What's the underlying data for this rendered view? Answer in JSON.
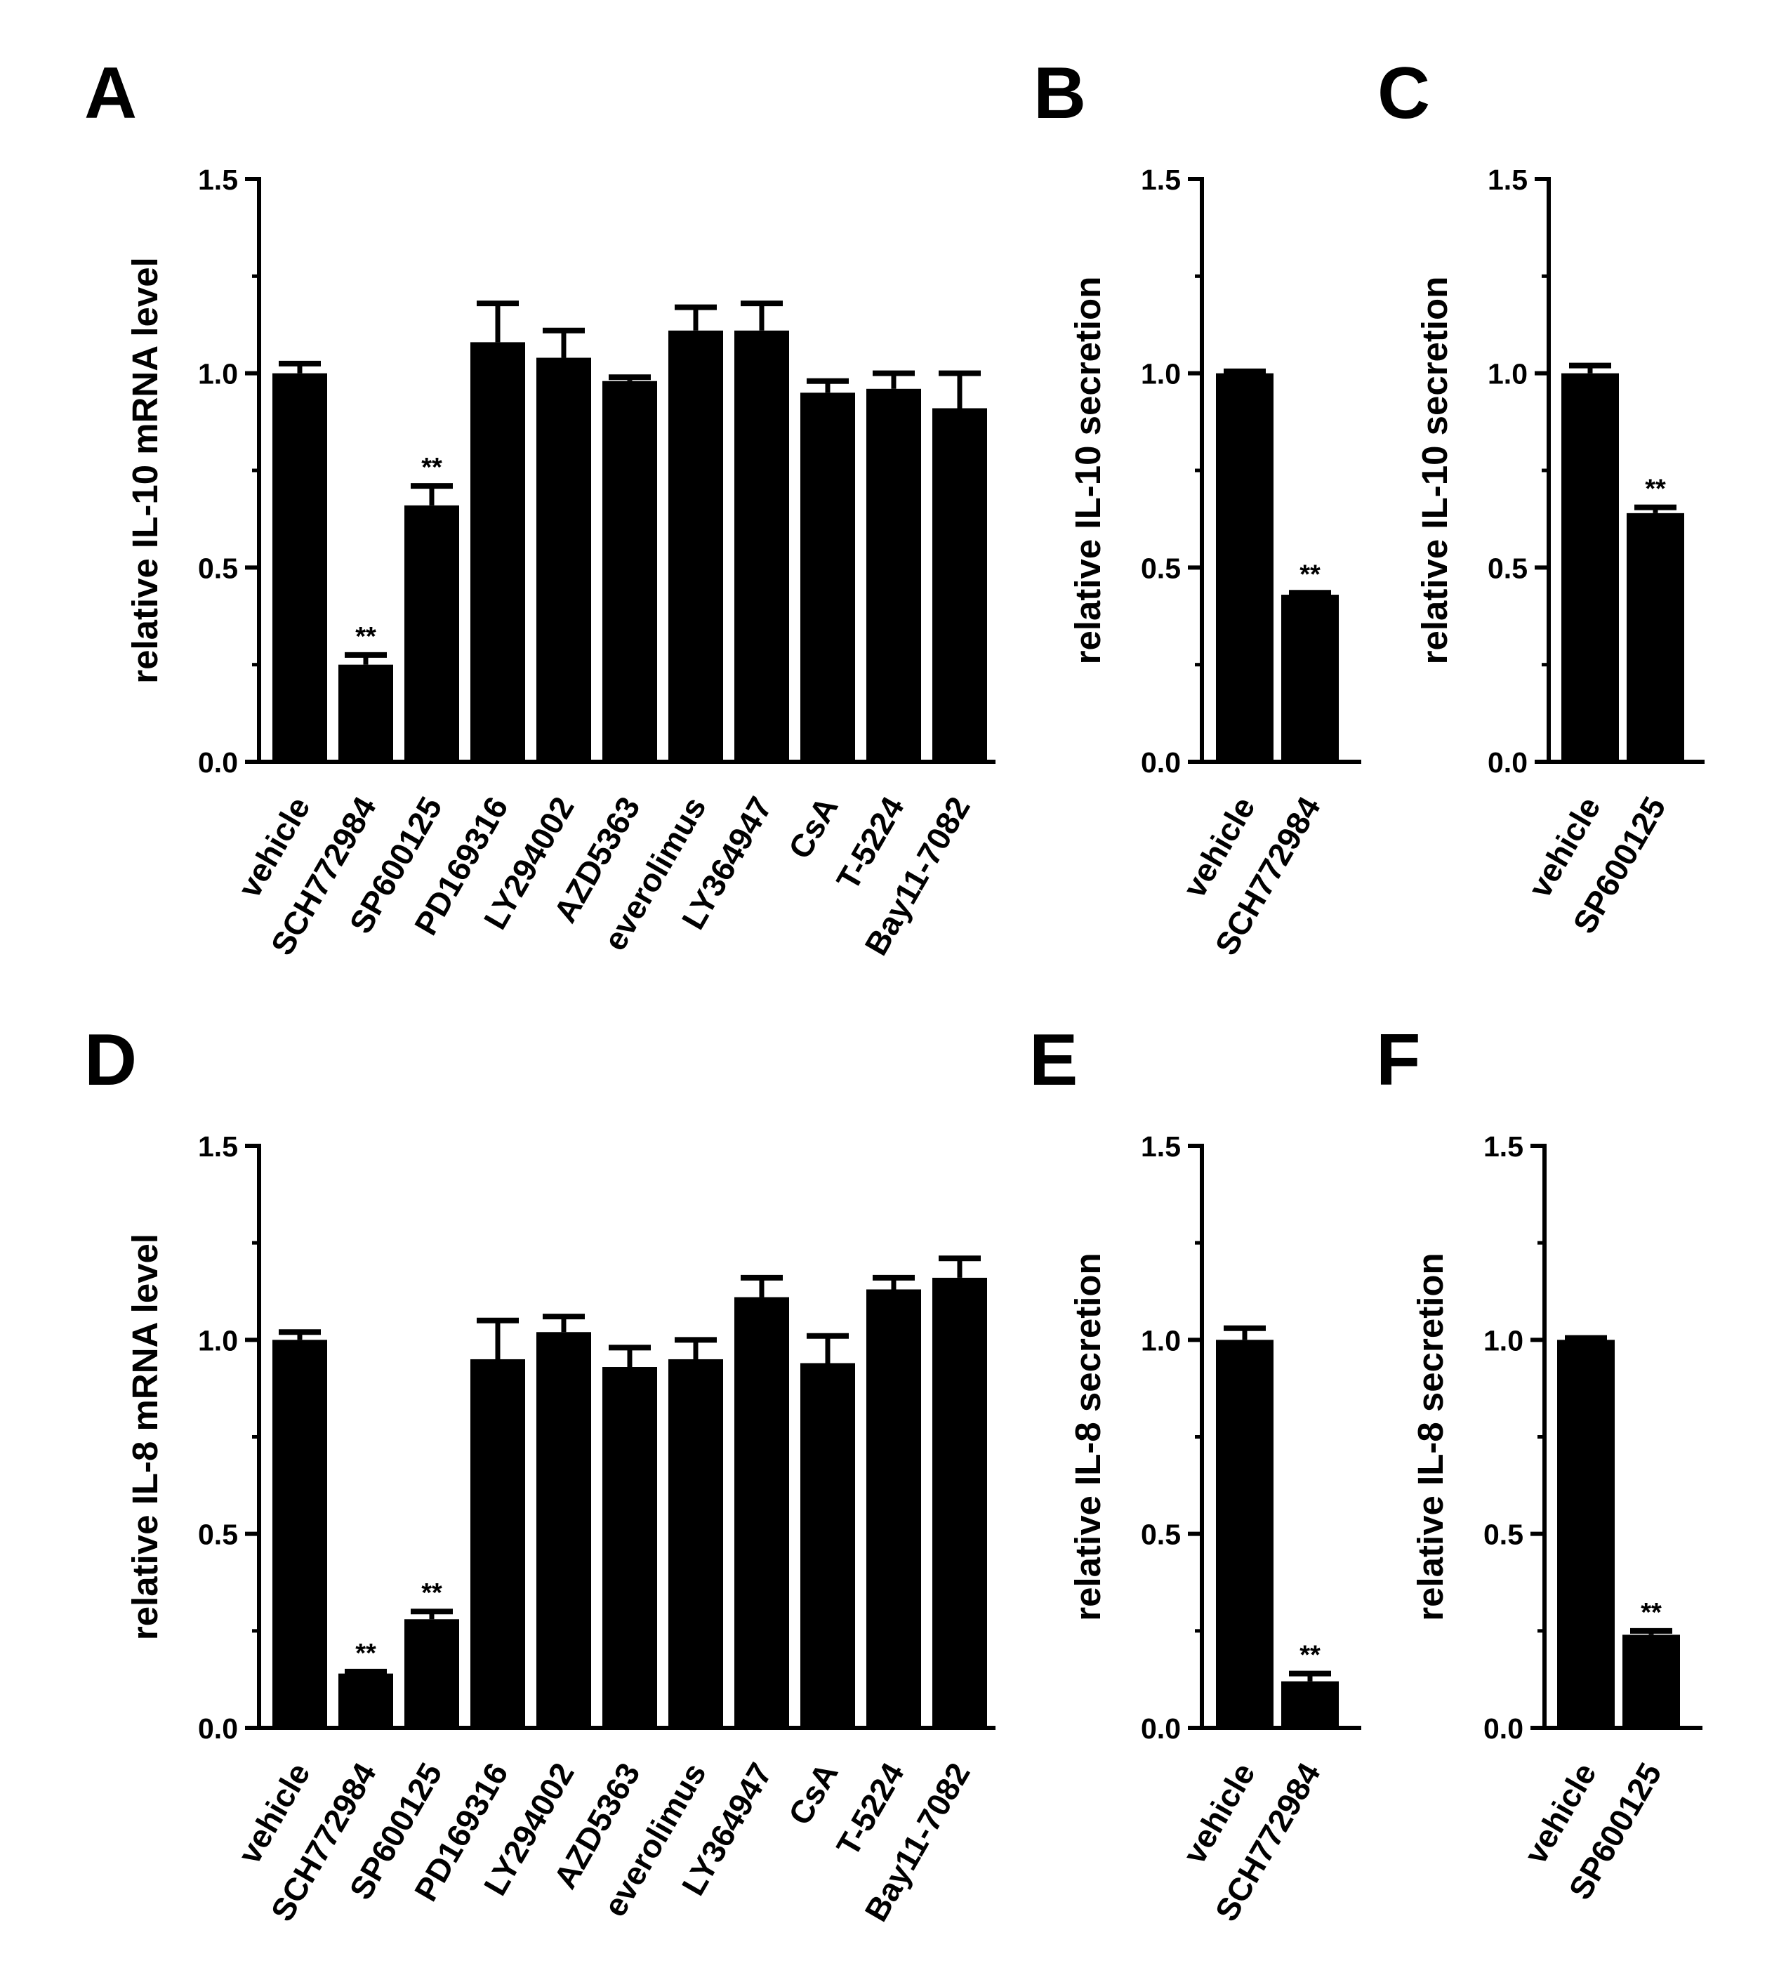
{
  "chart_data": [
    {
      "panel": "A",
      "type": "bar",
      "ylabel": "relative IL-10 mRNA level",
      "ylim": [
        0,
        1.5
      ],
      "yticks": [
        "0.0",
        "0.5",
        "1.0",
        "1.5"
      ],
      "categories": [
        "vehicle",
        "SCH772984",
        "SP600125",
        "PD169316",
        "LY294002",
        "AZD5363",
        "everolimus",
        "LY364947",
        "CsA",
        "T-5224",
        "Bay11-7082"
      ],
      "values": [
        1.0,
        0.25,
        0.66,
        1.08,
        1.04,
        0.98,
        1.11,
        1.11,
        0.95,
        0.96,
        0.91
      ],
      "errors": [
        0.025,
        0.025,
        0.05,
        0.1,
        0.07,
        0.01,
        0.06,
        0.07,
        0.03,
        0.04,
        0.09
      ],
      "significance": [
        "",
        "**",
        "**",
        "",
        "",
        "",
        "",
        "",
        "",
        "",
        ""
      ]
    },
    {
      "panel": "B",
      "type": "bar",
      "ylabel": "relative IL-10 secretion",
      "ylim": [
        0,
        1.5
      ],
      "yticks": [
        "0.0",
        "0.5",
        "1.0",
        "1.5"
      ],
      "categories": [
        "vehicle",
        "SCH772984"
      ],
      "values": [
        1.0,
        0.43
      ],
      "errors": [
        0.005,
        0.005
      ],
      "significance": [
        "",
        "**"
      ]
    },
    {
      "panel": "C",
      "type": "bar",
      "ylabel": "relative IL-10 secretion",
      "ylim": [
        0,
        1.5
      ],
      "yticks": [
        "0.0",
        "0.5",
        "1.0",
        "1.5"
      ],
      "categories": [
        "vehicle",
        "SP600125"
      ],
      "values": [
        1.0,
        0.64
      ],
      "errors": [
        0.02,
        0.015
      ],
      "significance": [
        "",
        "**"
      ]
    },
    {
      "panel": "D",
      "type": "bar",
      "ylabel": "relative IL-8 mRNA level",
      "ylim": [
        0,
        1.5
      ],
      "yticks": [
        "0.0",
        "0.5",
        "1.0",
        "1.5"
      ],
      "categories": [
        "vehicle",
        "SCH772984",
        "SP600125",
        "PD169316",
        "LY294002",
        "AZD5363",
        "everolimus",
        "LY364947",
        "CsA",
        "T-5224",
        "Bay11-7082"
      ],
      "values": [
        1.0,
        0.14,
        0.28,
        0.95,
        1.02,
        0.93,
        0.95,
        1.11,
        0.94,
        1.13,
        1.16
      ],
      "errors": [
        0.02,
        0.005,
        0.02,
        0.1,
        0.04,
        0.05,
        0.05,
        0.05,
        0.07,
        0.03,
        0.05
      ],
      "significance": [
        "",
        "**",
        "**",
        "",
        "",
        "",
        "",
        "",
        "",
        "",
        ""
      ]
    },
    {
      "panel": "E",
      "type": "bar",
      "ylabel": "relative IL-8 secretion",
      "ylim": [
        0,
        1.5
      ],
      "yticks": [
        "0.0",
        "0.5",
        "1.0",
        "1.5"
      ],
      "categories": [
        "vehicle",
        "SCH772984"
      ],
      "values": [
        1.0,
        0.12
      ],
      "errors": [
        0.03,
        0.02
      ],
      "significance": [
        "",
        "**"
      ]
    },
    {
      "panel": "F",
      "type": "bar",
      "ylabel": "relative IL-8 secretion",
      "ylim": [
        0,
        1.5
      ],
      "yticks": [
        "0.0",
        "0.5",
        "1.0",
        "1.5"
      ],
      "categories": [
        "vehicle",
        "SP600125"
      ],
      "values": [
        1.0,
        0.24
      ],
      "errors": [
        0.005,
        0.01
      ],
      "significance": [
        "",
        "**"
      ]
    }
  ]
}
